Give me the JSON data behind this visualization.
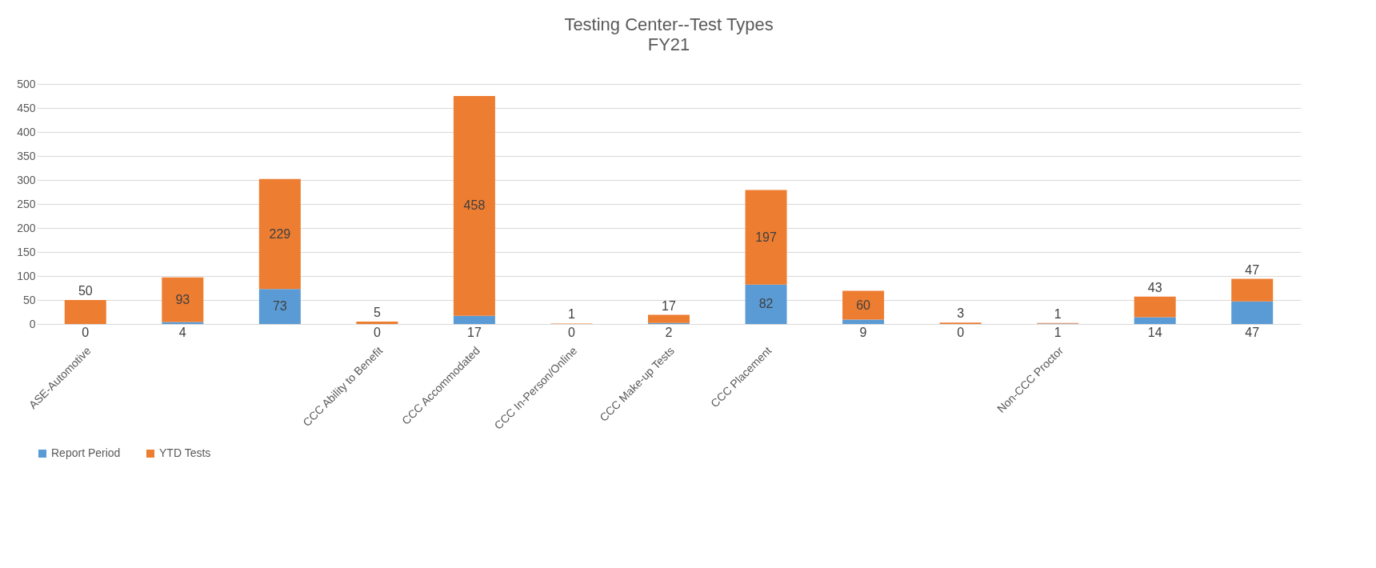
{
  "chart_data": {
    "type": "bar",
    "title": "Testing Center--Test Types",
    "subtitle": "FY21",
    "stacked": true,
    "data_labels": true,
    "grid": "y",
    "legend": "bottom",
    "categories": [
      "ASE-Automotive",
      null,
      null,
      "CCC Ability to Benefit",
      "CCC Accommodated",
      "CCC In-Person/Online",
      "CCC Make-up Tests",
      "CCC Placement",
      null,
      null,
      "Non-CCC Proctor",
      null,
      null
    ],
    "series": [
      {
        "name": "Report Period",
        "color": "#5b9bd5",
        "values": [
          0,
          4,
          73,
          0,
          17,
          0,
          2,
          82,
          9,
          0,
          1,
          14,
          47
        ]
      },
      {
        "name": "YTD Tests",
        "color": "#ed7d31",
        "values": [
          50,
          93,
          229,
          5,
          458,
          1,
          17,
          197,
          60,
          3,
          1,
          43,
          47
        ]
      }
    ],
    "ylim": [
      0,
      500
    ],
    "yticks": [
      0,
      50,
      100,
      150,
      200,
      250,
      300,
      350,
      400,
      450,
      500
    ]
  }
}
